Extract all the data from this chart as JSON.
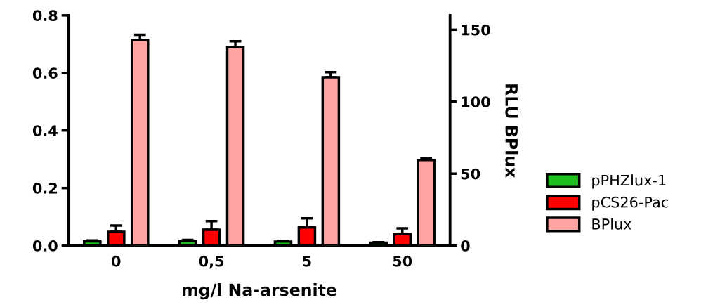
{
  "chart_data": {
    "type": "bar",
    "xlabel": "mg/l Na-arsenite",
    "y2label": "RLU BPlux",
    "categories": [
      "0",
      "0,5",
      "5",
      "50"
    ],
    "series": [
      {
        "name": "pPHZlux-1",
        "color": "#1fbf1f",
        "values": [
          0.015,
          0.017,
          0.014,
          0.01
        ],
        "errors": [
          [
            0.015,
            0.018
          ],
          [
            0.017,
            0.02
          ],
          [
            0.014,
            0.017
          ],
          [
            0.01,
            0.012
          ]
        ]
      },
      {
        "name": "pCS26-Pac",
        "color": "#ff0000",
        "values": [
          0.048,
          0.055,
          0.063,
          0.04
        ],
        "errors": [
          [
            0.048,
            0.07
          ],
          [
            0.055,
            0.085
          ],
          [
            0.063,
            0.095
          ],
          [
            0.04,
            0.06
          ]
        ]
      },
      {
        "name": "BPlux",
        "color": "#ffa3a3",
        "axis": "y2",
        "values": [
          143,
          138,
          117,
          59.5
        ],
        "errors": [
          [
            143,
            146.5
          ],
          [
            138,
            142
          ],
          [
            117,
            120.5
          ],
          [
            59.5,
            60.5
          ]
        ]
      }
    ],
    "ylim": [
      0,
      0.8
    ],
    "yticks": [
      {
        "value": 0,
        "label": "0.0"
      },
      {
        "value": 0.2,
        "label": "0.2"
      },
      {
        "value": 0.4,
        "label": "0.4"
      },
      {
        "value": 0.6,
        "label": "0.6"
      },
      {
        "value": 0.8,
        "label": "0.8"
      }
    ],
    "y2lim": [
      0,
      160
    ],
    "y2ticks": [
      0,
      50,
      100,
      150
    ],
    "grid": false,
    "legend": "right"
  }
}
